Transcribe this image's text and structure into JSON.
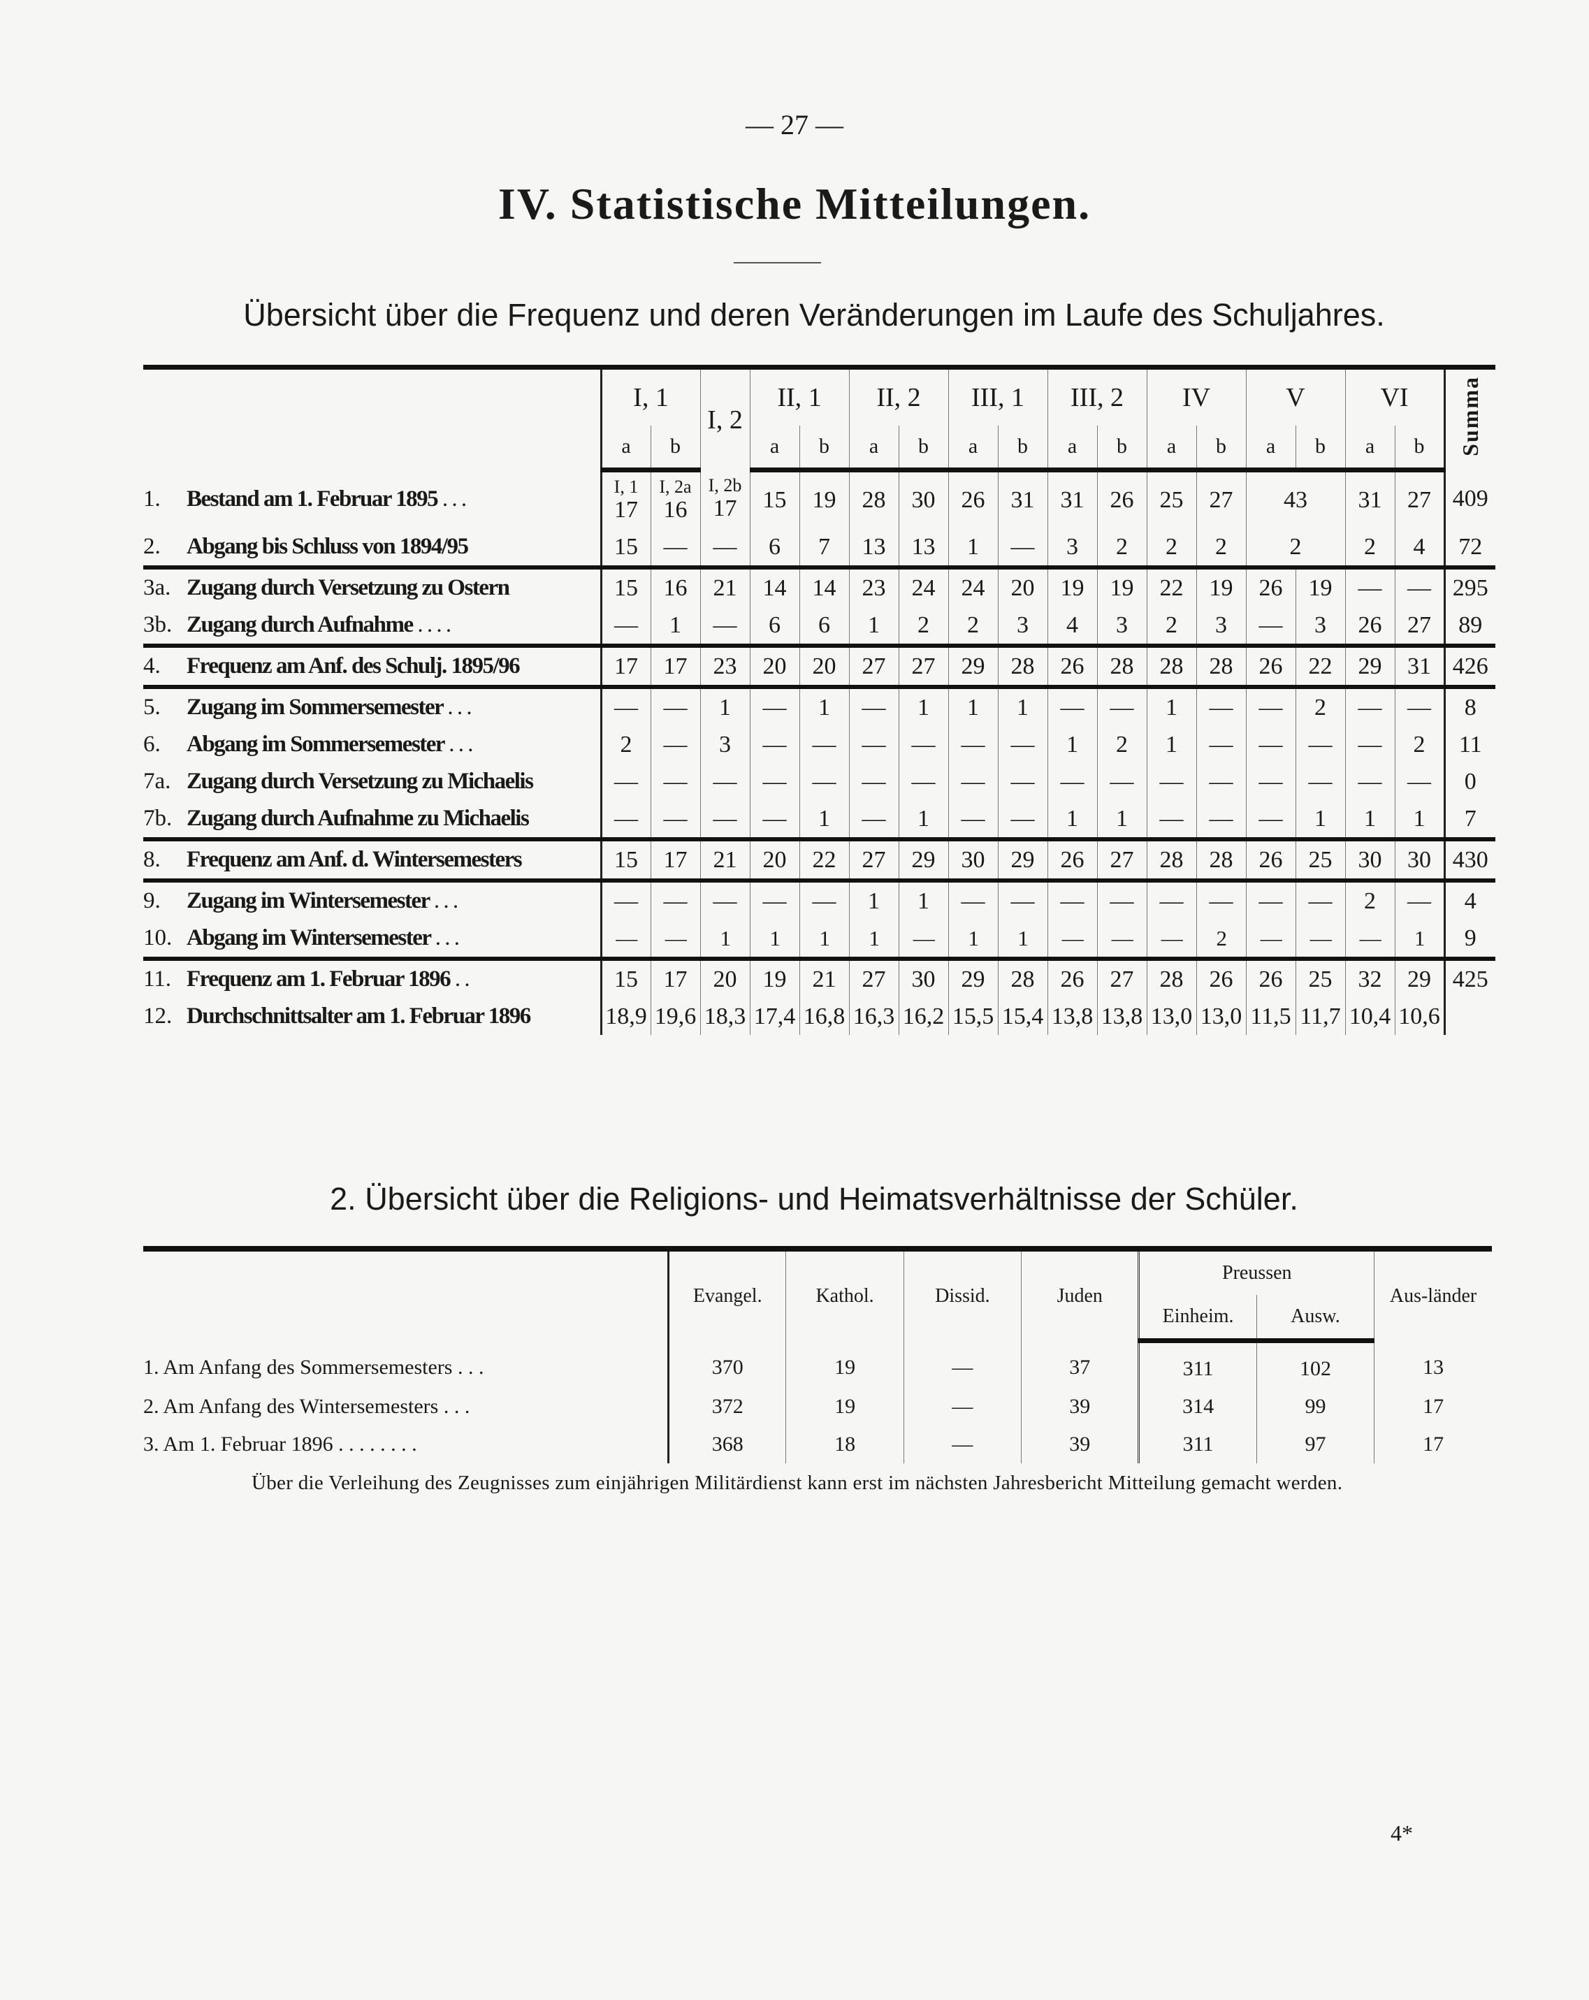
{
  "page_number": "— 27 —",
  "section_title": "IV. Statistische Mitteilungen.",
  "frequency_table": {
    "heading": "Übersicht über die Frequenz und deren Veränderungen im Laufe des Schuljahres.",
    "class_headers": [
      {
        "label": "I, 1",
        "span": 2
      },
      {
        "label": "I, 2",
        "span": 1
      },
      {
        "label": "II, 1",
        "span": 2
      },
      {
        "label": "II, 2",
        "span": 2
      },
      {
        "label": "III, 1",
        "span": 2
      },
      {
        "label": "III, 2",
        "span": 2
      },
      {
        "label": "IV",
        "span": 2
      },
      {
        "label": "V",
        "span": 2
      },
      {
        "label": "VI",
        "span": 2
      }
    ],
    "sub_headers": [
      "a",
      "b",
      "",
      "a",
      "b",
      "a",
      "b",
      "a",
      "b",
      "a",
      "b",
      "a",
      "b",
      "a",
      "b",
      "a",
      "b"
    ],
    "summa_label": "Summa",
    "row1_sublabels": [
      "I, 1",
      "I, 2a",
      "I, 2b"
    ],
    "rows": [
      {
        "no": "1.",
        "label": "Bestand am 1. Februar 1895",
        "dots": ". . .",
        "cells": [
          "17",
          "16",
          "17",
          "15",
          "19",
          "28",
          "30",
          "26",
          "31",
          "31",
          "26",
          "25",
          "27",
          {
            "value": "43",
            "span": 2
          },
          "31",
          "27"
        ],
        "summa": "409"
      },
      {
        "no": "2.",
        "label": "Abgang bis Schluss von 1894/95",
        "dots": "",
        "cells": [
          "15",
          "—",
          "—",
          "6",
          "7",
          "13",
          "13",
          "1",
          "—",
          "3",
          "2",
          "2",
          "2",
          {
            "value": "2",
            "span": 2
          },
          "2",
          "4"
        ],
        "summa": "72"
      },
      {
        "no": "3a.",
        "label": "Zugang durch Versetzung zu Ostern",
        "dots": "",
        "cells": [
          "15",
          "16",
          "21",
          "14",
          "14",
          "23",
          "24",
          "24",
          "20",
          "19",
          "19",
          "22",
          "19",
          "26",
          "19",
          "—",
          "—"
        ],
        "summa": "295"
      },
      {
        "no": "3b.",
        "label": "Zugang durch Aufnahme",
        "dots": ". . . .",
        "cells": [
          "—",
          "1",
          "—",
          "6",
          "6",
          "1",
          "2",
          "2",
          "3",
          "4",
          "3",
          "2",
          "3",
          "—",
          "3",
          "26",
          "27"
        ],
        "summa": "89"
      },
      {
        "no": "4.",
        "label": "Frequenz am Anf. des Schulj. 1895/96",
        "dots": "",
        "cells": [
          "17",
          "17",
          "23",
          "20",
          "20",
          "27",
          "27",
          "29",
          "28",
          "26",
          "28",
          "28",
          "28",
          "26",
          "22",
          "29",
          "31"
        ],
        "summa": "426"
      },
      {
        "no": "5.",
        "label": "Zugang im Sommersemester",
        "dots": ". . .",
        "cells": [
          "—",
          "—",
          "1",
          "—",
          "1",
          "—",
          "1",
          "1",
          "1",
          "—",
          "—",
          "1",
          "—",
          "—",
          "2",
          "—",
          "—"
        ],
        "summa": "8"
      },
      {
        "no": "6.",
        "label": "Abgang im Sommersemester",
        "dots": ". . .",
        "cells": [
          "2",
          "—",
          "3",
          "—",
          "—",
          "—",
          "—",
          "—",
          "—",
          "1",
          "2",
          "1",
          "—",
          "—",
          "—",
          "—",
          "2"
        ],
        "summa": "11"
      },
      {
        "no": "7a.",
        "label": "Zugang durch Versetzung zu Michaelis",
        "dots": "",
        "cells": [
          "—",
          "—",
          "—",
          "—",
          "—",
          "—",
          "—",
          "—",
          "—",
          "—",
          "—",
          "—",
          "—",
          "—",
          "—",
          "—",
          "—"
        ],
        "summa": "0"
      },
      {
        "no": "7b.",
        "label": "Zugang durch Aufnahme zu Michaelis",
        "dots": "",
        "cells": [
          "—",
          "—",
          "—",
          "—",
          "1",
          "—",
          "1",
          "—",
          "—",
          "1",
          "1",
          "—",
          "—",
          "—",
          "1",
          "1",
          "1"
        ],
        "summa": "7"
      },
      {
        "no": "8.",
        "label": "Frequenz am Anf. d. Wintersemesters",
        "dots": "",
        "cells": [
          "15",
          "17",
          "21",
          "20",
          "22",
          "27",
          "29",
          "30",
          "29",
          "26",
          "27",
          "28",
          "28",
          "26",
          "25",
          "30",
          "30"
        ],
        "summa": "430"
      },
      {
        "no": "9.",
        "label": "Zugang im Wintersemester",
        "dots": ". . .",
        "cells": [
          "—",
          "—",
          "—",
          "—",
          "—",
          "1",
          "1",
          "—",
          "—",
          "—",
          "—",
          "—",
          "—",
          "—",
          "—",
          "2",
          "—"
        ],
        "summa": "4"
      },
      {
        "no": "10.",
        "label": "Abgang im Wintersemester",
        "dots": ". . .",
        "cells": [
          "—",
          "—",
          "1",
          "1",
          "1",
          "1",
          "—",
          "1",
          "1",
          "—",
          "—",
          "—",
          "2",
          "—",
          "—",
          "—",
          "1"
        ],
        "summa": "9"
      },
      {
        "no": "11.",
        "label": "Frequenz am 1. Februar 1896",
        "dots": ". .",
        "cells": [
          "15",
          "17",
          "20",
          "19",
          "21",
          "27",
          "30",
          "29",
          "28",
          "26",
          "27",
          "28",
          "26",
          "26",
          "25",
          "32",
          "29"
        ],
        "summa": "425"
      },
      {
        "no": "12.",
        "label": "Durchschnittsalter am 1. Februar 1896",
        "dots": "",
        "cells": [
          "18,9",
          "19,6",
          "18,3",
          "17,4",
          "16,8",
          "16,3",
          "16,2",
          "15,5",
          "15,4",
          "13,8",
          "13,8",
          "13,0",
          "13,0",
          "11,5",
          "11,7",
          "10,4",
          "10,6"
        ],
        "summa": ""
      }
    ]
  },
  "religion_table": {
    "heading": "2. Übersicht über die Religions- und Heimatsverhältnisse der Schüler.",
    "headers": {
      "evangel": "Evangel.",
      "kathol": "Kathol.",
      "dissid": "Dissid.",
      "juden": "Juden",
      "preussen": "Preussen",
      "einheim": "Einheim.",
      "ausw": "Ausw.",
      "auslaender": "Aus-länder"
    },
    "rows": [
      {
        "label": "1. Am Anfang des Sommersemesters",
        "dots": ". . .",
        "values": [
          "370",
          "19",
          "—",
          "37",
          "311",
          "102",
          "13"
        ]
      },
      {
        "label": "2. Am Anfang des Wintersemesters",
        "dots": ". . .",
        "values": [
          "372",
          "19",
          "—",
          "39",
          "314",
          "99",
          "17"
        ]
      },
      {
        "label": "3. Am 1. Februar 1896",
        "dots": ". . . . . . . .",
        "values": [
          "368",
          "18",
          "—",
          "39",
          "311",
          "97",
          "17"
        ]
      }
    ]
  },
  "note": "Über die Verleihung des Zeugnisses zum einjährigen Militärdienst kann erst im nächsten Jahresbericht Mitteilung gemacht werden.",
  "signature_mark": "4*"
}
